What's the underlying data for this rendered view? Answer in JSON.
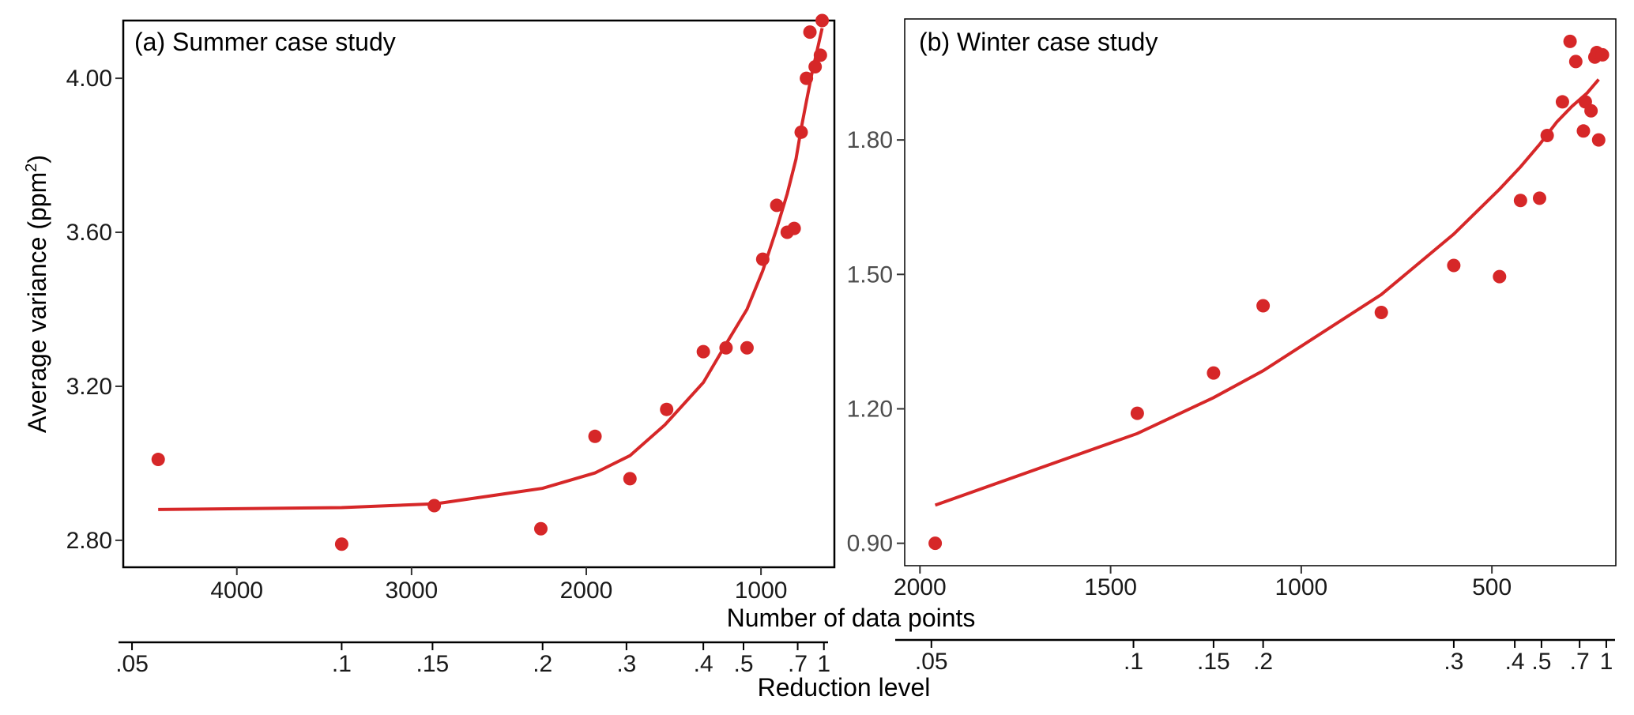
{
  "figure": {
    "shared_xlabel": "Number of data points",
    "shared_x2label": "Reduction level",
    "ylabel_main": "Average variance (ppm",
    "ylabel_sup": "2",
    "ylabel_close": ")"
  },
  "chart_data": [
    {
      "type": "scatter",
      "title": "(a) Summer case study",
      "xlabel": "Number of data points",
      "ylabel": "Average variance (ppm2)",
      "x_reversed": true,
      "xlim": [
        4650,
        580
      ],
      "ylim": [
        2.73,
        4.15
      ],
      "x_ticks": [
        4000,
        3000,
        2000,
        1000
      ],
      "x_tick_labels": [
        "4000",
        "3000",
        "2000",
        "1000"
      ],
      "y_ticks": [
        2.8,
        3.2,
        3.6,
        4.0
      ],
      "y_tick_labels": [
        "2.80",
        "3.20",
        "3.60",
        "4.00"
      ],
      "reduction_ticks": [
        {
          "label": ".05",
          "n": 4600
        },
        {
          "label": ".1",
          "n": 3400
        },
        {
          "label": ".15",
          "n": 2880
        },
        {
          "label": ".2",
          "n": 2250
        },
        {
          "label": ".3",
          "n": 1770
        },
        {
          "label": ".4",
          "n": 1330
        },
        {
          "label": ".5",
          "n": 1100
        },
        {
          "label": ".7",
          "n": 790
        },
        {
          "label": "1",
          "n": 640
        }
      ],
      "color": "#d62728",
      "points": [
        {
          "x": 4450,
          "y": 3.01
        },
        {
          "x": 3400,
          "y": 2.79
        },
        {
          "x": 2870,
          "y": 2.89
        },
        {
          "x": 2260,
          "y": 2.83
        },
        {
          "x": 1950,
          "y": 3.07
        },
        {
          "x": 1750,
          "y": 2.96
        },
        {
          "x": 1540,
          "y": 3.14
        },
        {
          "x": 1330,
          "y": 3.29
        },
        {
          "x": 1200,
          "y": 3.3
        },
        {
          "x": 1080,
          "y": 3.3
        },
        {
          "x": 990,
          "y": 3.53
        },
        {
          "x": 910,
          "y": 3.67
        },
        {
          "x": 850,
          "y": 3.6
        },
        {
          "x": 810,
          "y": 3.61
        },
        {
          "x": 770,
          "y": 3.86
        },
        {
          "x": 740,
          "y": 4.0
        },
        {
          "x": 720,
          "y": 4.12
        },
        {
          "x": 690,
          "y": 4.03
        },
        {
          "x": 660,
          "y": 4.06
        },
        {
          "x": 650,
          "y": 4.15
        }
      ],
      "fit_line": [
        {
          "x": 4450,
          "y": 2.88
        },
        {
          "x": 3400,
          "y": 2.885
        },
        {
          "x": 2860,
          "y": 2.895
        },
        {
          "x": 2250,
          "y": 2.935
        },
        {
          "x": 1950,
          "y": 2.975
        },
        {
          "x": 1750,
          "y": 3.02
        },
        {
          "x": 1550,
          "y": 3.1
        },
        {
          "x": 1330,
          "y": 3.21
        },
        {
          "x": 1200,
          "y": 3.31
        },
        {
          "x": 1080,
          "y": 3.4
        },
        {
          "x": 990,
          "y": 3.5
        },
        {
          "x": 910,
          "y": 3.61
        },
        {
          "x": 850,
          "y": 3.7
        },
        {
          "x": 800,
          "y": 3.79
        },
        {
          "x": 770,
          "y": 3.87
        },
        {
          "x": 740,
          "y": 3.94
        },
        {
          "x": 710,
          "y": 4.01
        },
        {
          "x": 680,
          "y": 4.07
        },
        {
          "x": 650,
          "y": 4.13
        }
      ]
    },
    {
      "type": "scatter",
      "title": "(b) Winter case study",
      "xlabel": "Number of data points",
      "ylabel": "",
      "x_reversed": true,
      "xlim": [
        2040,
        175
      ],
      "ylim": [
        0.85,
        2.07
      ],
      "x_ticks": [
        2000,
        1500,
        1000,
        500
      ],
      "x_tick_labels": [
        "2000",
        "1500",
        "1000",
        "500"
      ],
      "y_ticks": [
        0.9,
        1.2,
        1.5,
        1.8
      ],
      "y_tick_labels": [
        "0.90",
        "1.20",
        "1.50",
        "1.80"
      ],
      "reduction_ticks": [
        {
          "label": ".05",
          "n": 1970
        },
        {
          "label": ".1",
          "n": 1440
        },
        {
          "label": ".15",
          "n": 1230
        },
        {
          "label": ".2",
          "n": 1100
        },
        {
          "label": ".3",
          "n": 600
        },
        {
          "label": ".4",
          "n": 440
        },
        {
          "label": ".5",
          "n": 370
        },
        {
          "label": ".7",
          "n": 270
        },
        {
          "label": "1",
          "n": 200
        }
      ],
      "color": "#d62728",
      "points": [
        {
          "x": 1960,
          "y": 0.9
        },
        {
          "x": 1430,
          "y": 1.19
        },
        {
          "x": 1230,
          "y": 1.28
        },
        {
          "x": 1100,
          "y": 1.43
        },
        {
          "x": 790,
          "y": 1.415
        },
        {
          "x": 600,
          "y": 1.52
        },
        {
          "x": 480,
          "y": 1.495
        },
        {
          "x": 425,
          "y": 1.665
        },
        {
          "x": 375,
          "y": 1.67
        },
        {
          "x": 355,
          "y": 1.81
        },
        {
          "x": 315,
          "y": 1.885
        },
        {
          "x": 295,
          "y": 2.02
        },
        {
          "x": 280,
          "y": 1.975
        },
        {
          "x": 260,
          "y": 1.82
        },
        {
          "x": 255,
          "y": 1.885
        },
        {
          "x": 240,
          "y": 1.865
        },
        {
          "x": 230,
          "y": 1.985
        },
        {
          "x": 225,
          "y": 1.995
        },
        {
          "x": 220,
          "y": 1.8
        },
        {
          "x": 210,
          "y": 1.99
        }
      ],
      "fit_line": [
        {
          "x": 1960,
          "y": 0.985
        },
        {
          "x": 1430,
          "y": 1.145
        },
        {
          "x": 1230,
          "y": 1.225
        },
        {
          "x": 1100,
          "y": 1.285
        },
        {
          "x": 790,
          "y": 1.455
        },
        {
          "x": 600,
          "y": 1.59
        },
        {
          "x": 480,
          "y": 1.69
        },
        {
          "x": 425,
          "y": 1.74
        },
        {
          "x": 375,
          "y": 1.79
        },
        {
          "x": 330,
          "y": 1.84
        },
        {
          "x": 290,
          "y": 1.875
        },
        {
          "x": 250,
          "y": 1.905
        },
        {
          "x": 220,
          "y": 1.935
        }
      ]
    }
  ]
}
